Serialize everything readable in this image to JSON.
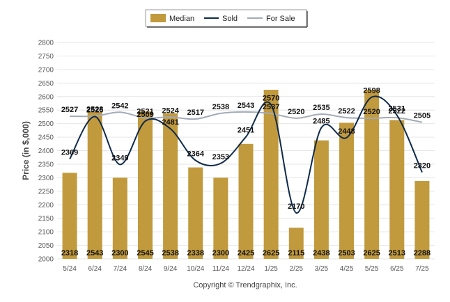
{
  "chart_data": {
    "type": "bar",
    "categories": [
      "5/24",
      "6/24",
      "7/24",
      "8/24",
      "9/24",
      "10/24",
      "11/24",
      "12/24",
      "1/25",
      "2/25",
      "3/25",
      "4/25",
      "5/25",
      "6/25",
      "7/25"
    ],
    "ylabel": "Price (in $,000)",
    "ylim": [
      2000,
      2800
    ],
    "yticks": [
      2000,
      2050,
      2100,
      2150,
      2200,
      2250,
      2300,
      2350,
      2400,
      2450,
      2500,
      2550,
      2600,
      2650,
      2700,
      2750,
      2800
    ],
    "grid": true,
    "legend_position": "top-center",
    "series": [
      {
        "name": "Median",
        "type": "bar",
        "color": "#C19A3E",
        "values": [
          2318,
          2543,
          2300,
          2545,
          2538,
          2338,
          2300,
          2425,
          2625,
          2115,
          2438,
          2503,
          2625,
          2513,
          2288
        ]
      },
      {
        "name": "Sold",
        "type": "line",
        "color": "#0F2A4A",
        "values": [
          2369,
          2526,
          2349,
          2509,
          2481,
          2364,
          2353,
          2451,
          2570,
          2170,
          2485,
          2448,
          2598,
          2531,
          2320
        ]
      },
      {
        "name": "For Sale",
        "type": "line",
        "color": "#A3AAB8",
        "values": [
          2527,
          2528,
          2542,
          2521,
          2524,
          2517,
          2538,
          2543,
          2537,
          2520,
          2535,
          2522,
          2520,
          2522,
          2505
        ]
      }
    ]
  },
  "footer": {
    "copyright": "Copyright © Trendgraphix, Inc."
  }
}
